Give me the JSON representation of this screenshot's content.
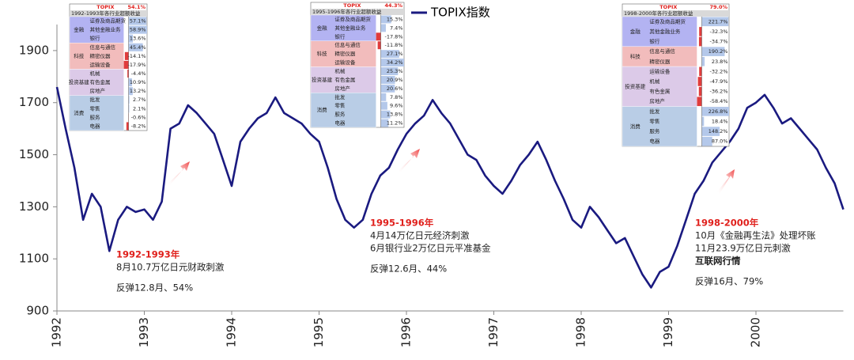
{
  "chart_data": {
    "type": "line",
    "x": [
      1992.0,
      1992.1,
      1992.2,
      1992.3,
      1992.4,
      1992.5,
      1992.6,
      1992.7,
      1992.8,
      1992.9,
      1993.0,
      1993.1,
      1993.2,
      1993.3,
      1993.4,
      1993.5,
      1993.6,
      1993.7,
      1993.8,
      1993.9,
      1994.0,
      1994.1,
      1994.2,
      1994.3,
      1994.4,
      1994.5,
      1994.6,
      1994.7,
      1994.8,
      1994.9,
      1995.0,
      1995.1,
      1995.2,
      1995.3,
      1995.4,
      1995.5,
      1995.6,
      1995.7,
      1995.8,
      1995.9,
      1996.0,
      1996.1,
      1996.2,
      1996.3,
      1996.4,
      1996.5,
      1996.6,
      1996.7,
      1996.8,
      1996.9,
      1997.0,
      1997.1,
      1997.2,
      1997.3,
      1997.4,
      1997.5,
      1997.6,
      1997.7,
      1997.8,
      1997.9,
      1998.0,
      1998.1,
      1998.2,
      1998.3,
      1998.4,
      1998.5,
      1998.6,
      1998.7,
      1998.8,
      1998.9,
      1999.0,
      1999.1,
      1999.2,
      1999.3,
      1999.4,
      1999.5,
      1999.6,
      1999.7,
      1999.8,
      1999.9,
      2000.0,
      2000.1,
      2000.2,
      2000.3,
      2000.4,
      2000.5,
      2000.6,
      2000.7,
      2000.8,
      2000.9,
      2001.0
    ],
    "series": [
      {
        "name": "TOPIX指数",
        "color": "#1a1a80",
        "values": [
          1760,
          1600,
          1450,
          1250,
          1350,
          1300,
          1130,
          1250,
          1300,
          1280,
          1290,
          1250,
          1320,
          1600,
          1620,
          1690,
          1660,
          1620,
          1580,
          1480,
          1380,
          1550,
          1600,
          1640,
          1660,
          1720,
          1660,
          1640,
          1620,
          1580,
          1550,
          1450,
          1330,
          1250,
          1220,
          1250,
          1350,
          1420,
          1450,
          1520,
          1580,
          1620,
          1650,
          1710,
          1660,
          1620,
          1560,
          1500,
          1480,
          1420,
          1380,
          1350,
          1400,
          1460,
          1500,
          1550,
          1480,
          1400,
          1330,
          1250,
          1220,
          1300,
          1260,
          1210,
          1160,
          1180,
          1110,
          1040,
          990,
          1050,
          1070,
          1150,
          1250,
          1350,
          1400,
          1470,
          1510,
          1550,
          1600,
          1680,
          1700,
          1730,
          1680,
          1620,
          1640,
          1600,
          1560,
          1520,
          1450,
          1390,
          1290
        ]
      }
    ],
    "xlim": [
      1992,
      2001
    ],
    "xticks": [
      1992,
      1993,
      1994,
      1995,
      1996,
      1997,
      1998,
      1999,
      2000
    ],
    "ylim": [
      900,
      2000
    ],
    "yticks": [
      900,
      1100,
      1300,
      1500,
      1700,
      1900
    ],
    "annotations": [
      {
        "title": "1992-1993年",
        "lines": [
          "8月10.7万亿日元财政刺激"
        ],
        "rebound": "反弹12.8月、54%"
      },
      {
        "title": "1995-1996年",
        "lines": [
          "4月14万亿日元经济刺激",
          "6月银行业2万亿日元平准基金"
        ],
        "rebound": "反弹12.6月、44%"
      },
      {
        "title": "1998-2000年",
        "lines": [
          "10月《金融再生法》处理坏账",
          "11月23.9万亿日元刺激",
          "互联网行情"
        ],
        "rebound": "反弹16月、79%"
      }
    ]
  },
  "insets": [
    {
      "index": "TOPIX",
      "total": "54.1%",
      "subtitle": "1992-1993年各行业超额收益",
      "groups": [
        {
          "name": "金融",
          "rows": [
            {
              "item": "证券及商品期货",
              "value": 57.1,
              "label": "57.1%"
            },
            {
              "item": "其他金融业务",
              "value": 58.9,
              "label": "58.9%"
            },
            {
              "item": "银行",
              "value": 13.6,
              "label": "13.6%"
            }
          ]
        },
        {
          "name": "科技",
          "rows": [
            {
              "item": "信息与通信",
              "value": 45.4,
              "label": "45.4%"
            },
            {
              "item": "精密仪器",
              "value": -14.1,
              "label": "-14.1%"
            },
            {
              "item": "运输设备",
              "value": -17.9,
              "label": "-17.9%"
            }
          ]
        },
        {
          "name": "投资基建",
          "rows": [
            {
              "item": "机械",
              "value": -4.4,
              "label": "-4.4%"
            },
            {
              "item": "有色金属",
              "value": 10.9,
              "label": "10.9%"
            },
            {
              "item": "房地产",
              "value": 13.2,
              "label": "13.2%"
            }
          ]
        },
        {
          "name": "消费",
          "rows": [
            {
              "item": "批发",
              "value": 2.7,
              "label": "2.7%"
            },
            {
              "item": "零售",
              "value": 2.1,
              "label": "2.1%"
            },
            {
              "item": "服务",
              "value": -0.6,
              "label": "-0.6%"
            },
            {
              "item": "电器",
              "value": -8.2,
              "label": "-8.2%"
            }
          ]
        }
      ]
    },
    {
      "index": "TOPIX",
      "total": "44.3%",
      "subtitle": "1995-1996年各行业超额收益",
      "groups": [
        {
          "name": "金融",
          "rows": [
            {
              "item": "证券及商品期货",
              "value": 15.3,
              "label": "15.3%"
            },
            {
              "item": "其他金融业务",
              "value": 7.4,
              "label": "7.4%"
            },
            {
              "item": "银行",
              "value": -17.8,
              "label": "-17.8%"
            }
          ]
        },
        {
          "name": "科技",
          "rows": [
            {
              "item": "信息与通信",
              "value": -11.8,
              "label": "-11.8%"
            },
            {
              "item": "精密仪器",
              "value": 27.1,
              "label": "27.1%"
            },
            {
              "item": "运输设备",
              "value": 34.2,
              "label": "34.2%"
            }
          ]
        },
        {
          "name": "投资基建",
          "rows": [
            {
              "item": "机械",
              "value": 25.3,
              "label": "25.3%"
            },
            {
              "item": "有色金属",
              "value": 20.9,
              "label": "20.9%"
            },
            {
              "item": "房地产",
              "value": 20.6,
              "label": "20.6%"
            }
          ]
        },
        {
          "name": "消费",
          "rows": [
            {
              "item": "批发",
              "value": 7.8,
              "label": "7.8%"
            },
            {
              "item": "零售",
              "value": 9.6,
              "label": "9.6%"
            },
            {
              "item": "服务",
              "value": 13.8,
              "label": "13.8%"
            },
            {
              "item": "电器",
              "value": 11.2,
              "label": "11.2%"
            }
          ]
        }
      ]
    },
    {
      "index": "TOPIX",
      "total": "79.0%",
      "subtitle": "1998-2000年各行业超额收益",
      "groups": [
        {
          "name": "金融",
          "rows": [
            {
              "item": "证券及商品期货",
              "value": 221.7,
              "label": "221.7%"
            },
            {
              "item": "其他金融业务",
              "value": -32.3,
              "label": "-32.3%"
            },
            {
              "item": "银行",
              "value": -34.7,
              "label": "-34.7%"
            }
          ]
        },
        {
          "name": "科技",
          "rows": [
            {
              "item": "信息与通信",
              "value": 190.2,
              "label": "190.2%"
            },
            {
              "item": "精密仪器",
              "value": 23.8,
              "label": "23.8%"
            }
          ]
        },
        {
          "name": "投资基建",
          "rows": [
            {
              "item": "运输设备",
              "value": -32.2,
              "label": "-32.2%"
            },
            {
              "item": "机械",
              "value": -47.9,
              "label": "-47.9%"
            },
            {
              "item": "有色金属",
              "value": -36.2,
              "label": "-36.2%"
            },
            {
              "item": "房地产",
              "value": -58.4,
              "label": "-58.4%"
            }
          ]
        },
        {
          "name": "消费",
          "rows": [
            {
              "item": "批发",
              "value": 226.8,
              "label": "226.8%"
            },
            {
              "item": "零售",
              "value": 18.4,
              "label": "18.4%"
            },
            {
              "item": "服务",
              "value": 148.2,
              "label": "148.2%"
            },
            {
              "item": "电器",
              "value": 87.0,
              "label": "87.0%"
            }
          ]
        }
      ]
    }
  ]
}
